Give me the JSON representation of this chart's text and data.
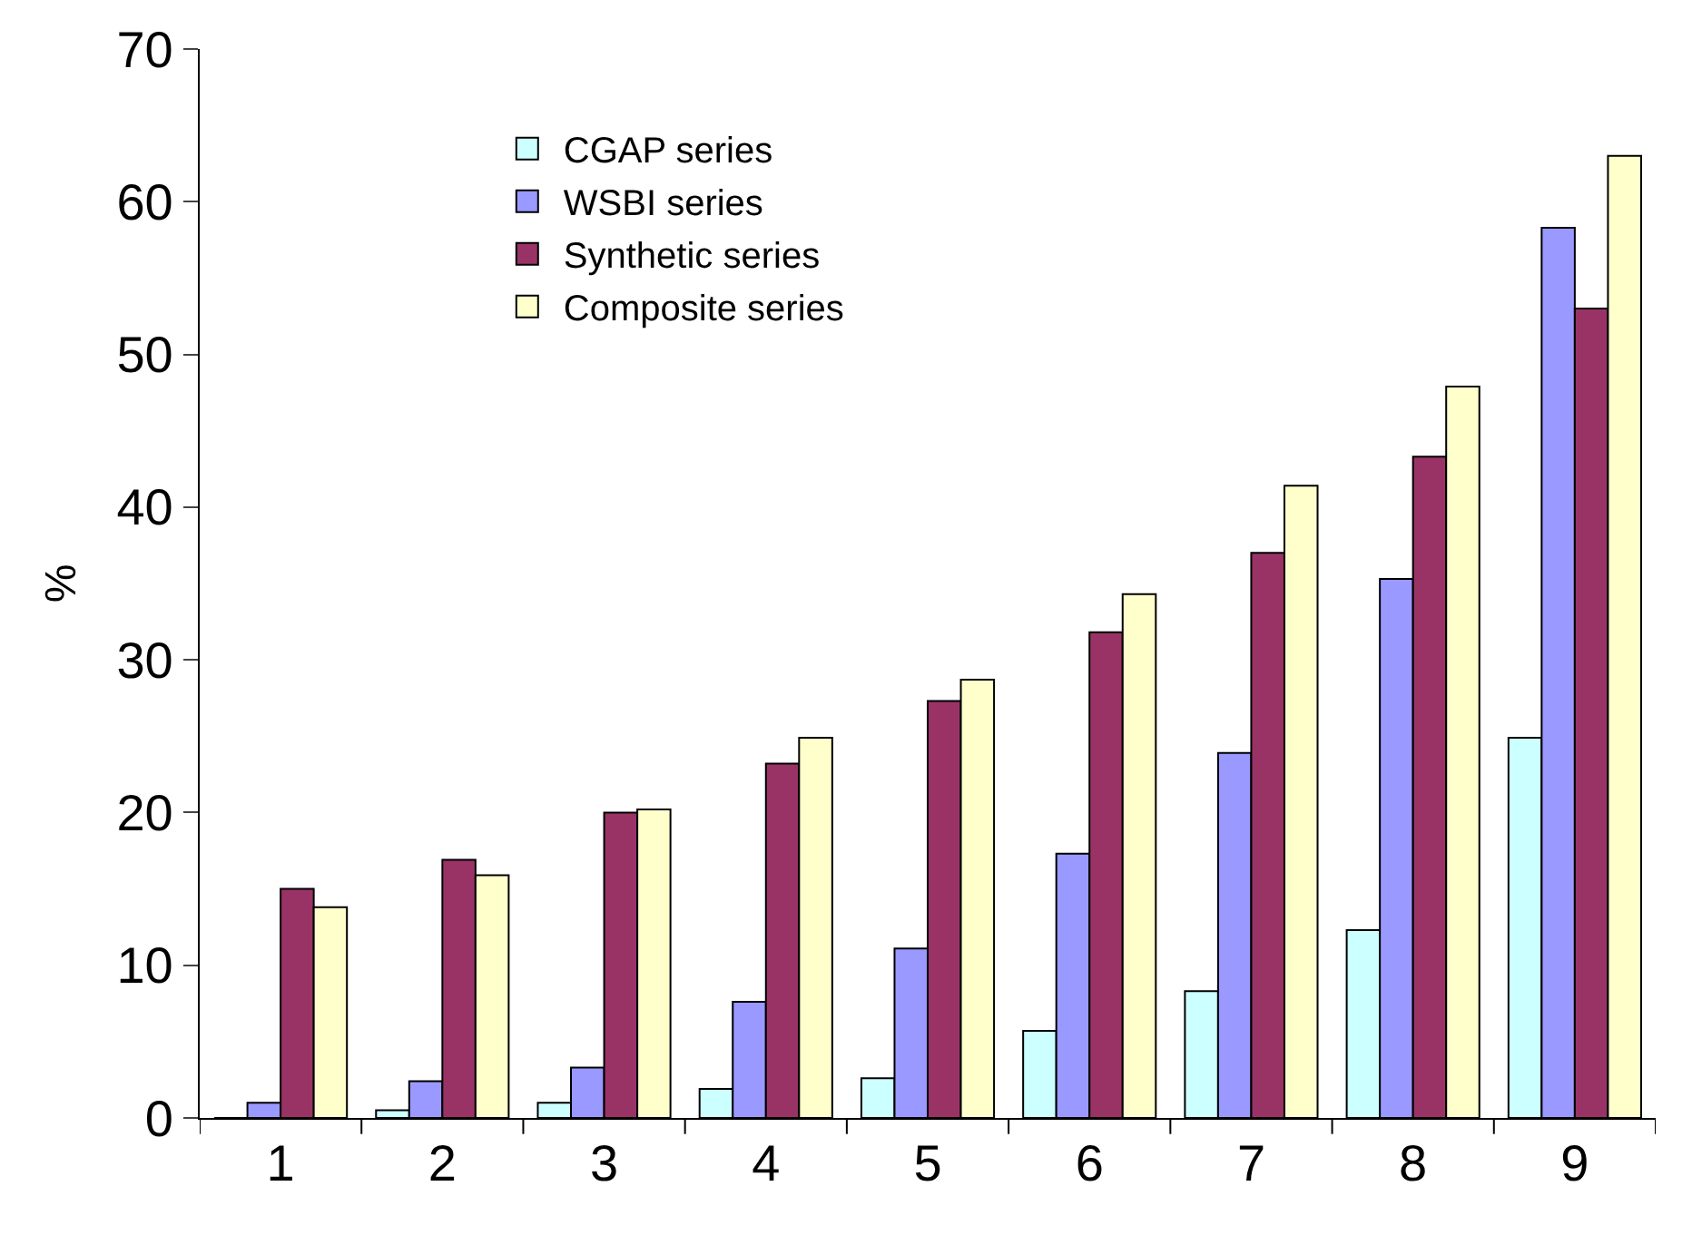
{
  "chart_data": {
    "type": "bar",
    "ylabel": "%",
    "categories": [
      "1",
      "2",
      "3",
      "4",
      "5",
      "6",
      "7",
      "8",
      "9"
    ],
    "series": [
      {
        "name": "CGAP series",
        "color": "#ccffff",
        "values": [
          0,
          0.5,
          1.0,
          1.9,
          2.6,
          5.7,
          8.3,
          12.3,
          24.9
        ]
      },
      {
        "name": "WSBI series",
        "color": "#9999ff",
        "values": [
          1.0,
          2.4,
          3.3,
          7.6,
          11.1,
          17.3,
          23.9,
          35.3,
          58.3
        ]
      },
      {
        "name": "Synthetic series",
        "color": "#993366",
        "values": [
          15.0,
          16.9,
          20.0,
          23.2,
          27.3,
          31.8,
          37.0,
          43.3,
          53.0
        ]
      },
      {
        "name": "Composite series",
        "color": "#ffffcc",
        "values": [
          13.8,
          15.9,
          20.2,
          24.9,
          28.7,
          34.3,
          41.4,
          47.9,
          63.0
        ]
      }
    ],
    "ylim": [
      0,
      70
    ],
    "yticks": [
      0,
      10,
      20,
      30,
      40,
      50,
      60,
      70
    ],
    "grid": false,
    "legend": "top left"
  }
}
